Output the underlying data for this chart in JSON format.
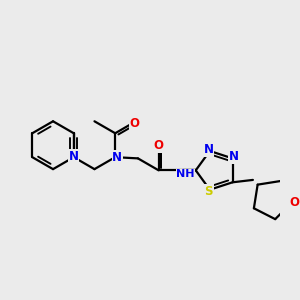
{
  "bg_color": "#ebebeb",
  "bond_color": "#000000",
  "bond_width": 1.6,
  "atom_colors": {
    "N": "#0000ee",
    "O": "#ee0000",
    "S": "#cccc00",
    "C": "#000000"
  },
  "font_size": 8.5,
  "xlim": [
    -2.6,
    3.2
  ],
  "ylim": [
    -1.6,
    1.6
  ]
}
